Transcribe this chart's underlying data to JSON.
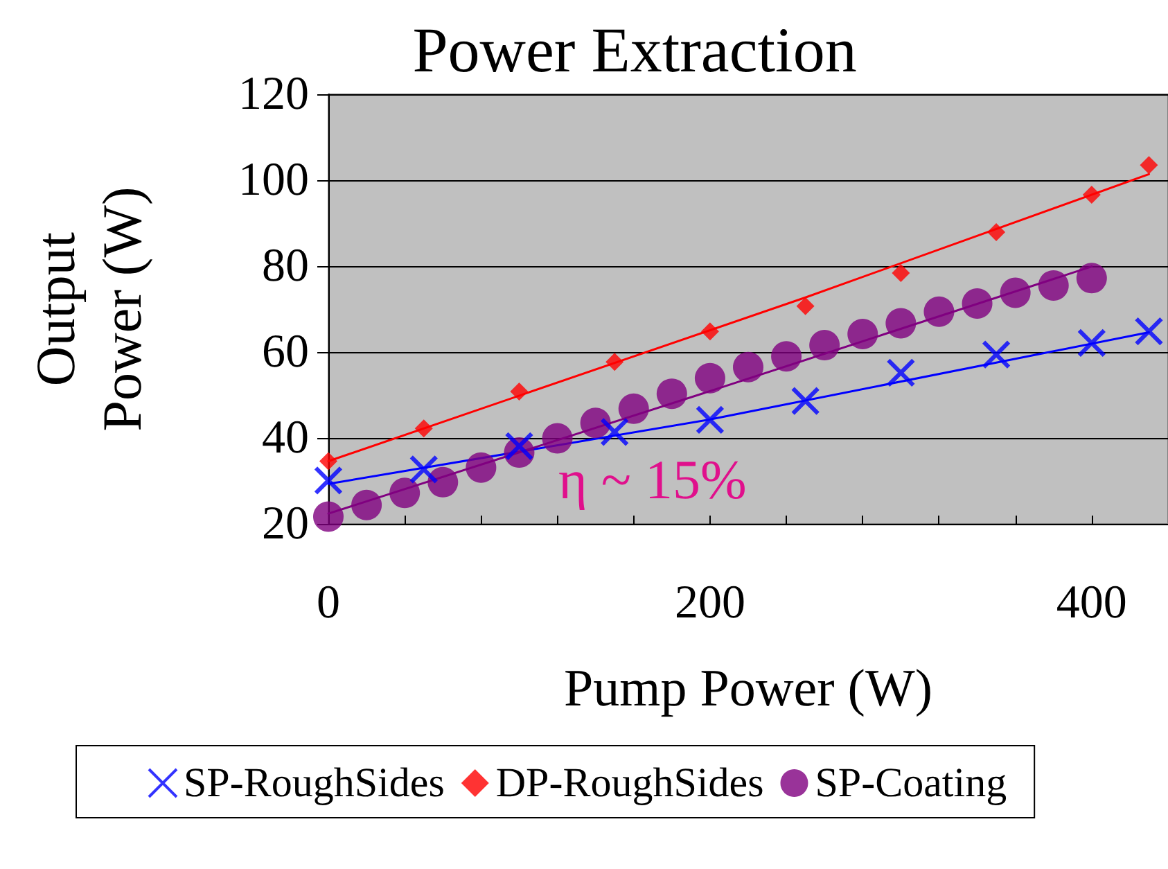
{
  "chart_data": {
    "type": "scatter",
    "title": "Power Extraction",
    "xlabel": "Pump Power (W)",
    "ylabel": "Output\nPower (W)",
    "xlim": [
      0,
      440
    ],
    "ylim": [
      20,
      120
    ],
    "xticks": [
      0,
      {
        "value": 40,
        "label": null
      },
      {
        "value": 80,
        "label": null
      },
      {
        "value": 120,
        "label": null
      },
      {
        "value": 160,
        "label": null
      },
      200,
      {
        "value": 240,
        "label": null
      },
      {
        "value": 280,
        "label": null
      },
      {
        "value": 320,
        "label": null
      },
      {
        "value": 360,
        "label": null
      },
      400
    ],
    "yticks": [
      20,
      40,
      60,
      80,
      100,
      120
    ],
    "grid": "y",
    "legend": "bottom",
    "annotations": [
      "η ~ 15%"
    ],
    "series": [
      {
        "name": "SP-RoughSides",
        "color": "#0000ff",
        "marker": "cross",
        "x": [
          0,
          50,
          100,
          150,
          200,
          250,
          300,
          350,
          400,
          430
        ],
        "values": [
          30.1,
          32.7,
          38.1,
          41.4,
          44.2,
          48.6,
          55.2,
          59.4,
          62.1,
          64.8
        ]
      },
      {
        "name": "DP-RoughSides",
        "color": "#ff0000",
        "marker": "diamond",
        "x": [
          0,
          50,
          100,
          150,
          200,
          250,
          300,
          350,
          400,
          430
        ],
        "values": [
          34.6,
          42.2,
          50.8,
          57.7,
          64.8,
          70.7,
          78.4,
          87.9,
          96.6,
          103.5
        ]
      },
      {
        "name": "SP-Coating",
        "color": "#800080",
        "marker": "circle",
        "x": [
          0,
          20,
          40,
          60,
          80,
          100,
          120,
          140,
          160,
          180,
          200,
          220,
          240,
          260,
          280,
          300,
          320,
          340,
          360,
          380,
          400
        ],
        "values": [
          21.7,
          24.4,
          27.2,
          29.7,
          33.1,
          36.6,
          39.9,
          43.5,
          46.8,
          50.3,
          53.9,
          56.5,
          59.0,
          61.6,
          64.2,
          66.7,
          69.4,
          71.3,
          73.8,
          75.5,
          77.2
        ]
      },
      {
        "type": "line",
        "color": "#0000ff",
        "marker": "none",
        "x": [
          0,
          200,
          430
        ],
        "values": [
          29.3,
          44.3,
          64.6
        ]
      },
      {
        "type": "line",
        "color": "#ff0000",
        "marker": "none",
        "x": [
          0,
          250,
          430
        ],
        "values": [
          34.6,
          72.7,
          101.4
        ]
      },
      {
        "type": "line",
        "color": "#800080",
        "marker": "none",
        "x": [
          0,
          200,
          400
        ],
        "values": [
          22.4,
          50.9,
          79.9
        ]
      }
    ]
  }
}
